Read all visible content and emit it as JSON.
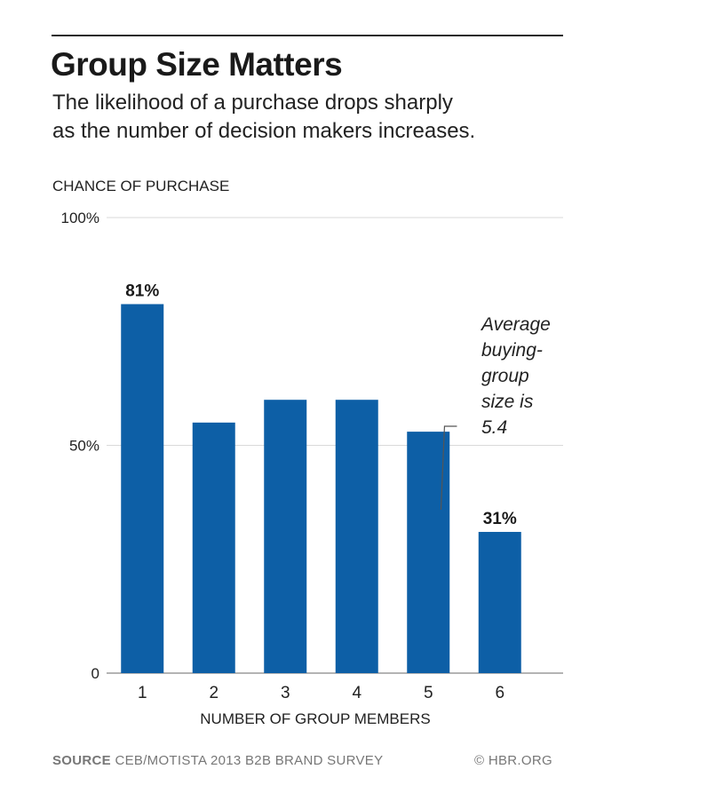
{
  "header": {
    "title": "Group Size Matters",
    "subtitle_line1": "The likelihood of a purchase drops sharply",
    "subtitle_line2": "as the number of decision makers increases."
  },
  "footer": {
    "source_label": "SOURCE",
    "source_text": "CEB/MOTISTA 2013 B2B BRAND SURVEY",
    "credit": "© HBR.ORG"
  },
  "colors": {
    "bar": "#0d5fa6",
    "gridline": "#d9d9d9",
    "axis": "#888888"
  },
  "chart_data": {
    "type": "bar",
    "title": "Group Size Matters",
    "ylabel": "CHANCE OF PURCHASE",
    "xlabel": "NUMBER OF GROUP MEMBERS",
    "categories": [
      "1",
      "2",
      "3",
      "4",
      "5",
      "6"
    ],
    "values": [
      81,
      55,
      60,
      60,
      53,
      31
    ],
    "data_labels": [
      "81%",
      "",
      "",
      "",
      "",
      "31%"
    ],
    "ylim": [
      0,
      100
    ],
    "yticks": [
      {
        "value": 0,
        "label": "0"
      },
      {
        "value": 50,
        "label": "50%"
      },
      {
        "value": 100,
        "label": "100%"
      }
    ],
    "grid": true,
    "annotation": {
      "lines": [
        "Average",
        "buying-",
        "group",
        "size is",
        "5.4"
      ],
      "x_value": 5.4
    }
  }
}
